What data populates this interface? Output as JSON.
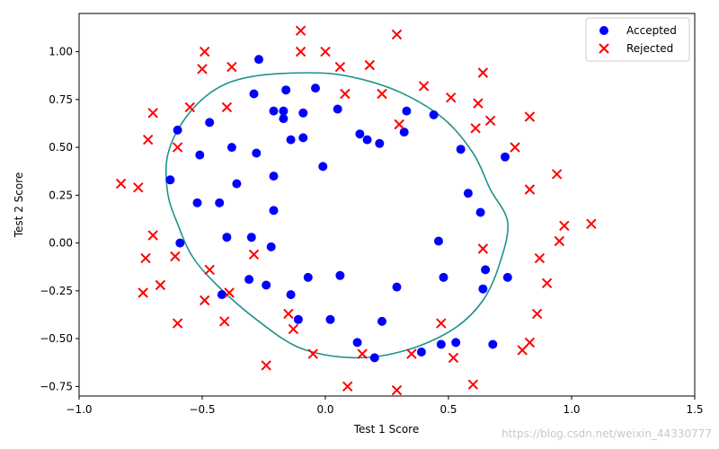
{
  "chart_data": {
    "type": "scatter",
    "xlabel": "Test 1 Score",
    "ylabel": "Test 2 Score",
    "xlim": [
      -1.0,
      1.5
    ],
    "ylim": [
      -0.8,
      1.2
    ],
    "xticks": [
      -1.0,
      -0.5,
      0.0,
      0.5,
      1.0,
      1.5
    ],
    "xtick_labels": [
      "−1.0",
      "−0.5",
      "0.0",
      "0.5",
      "1.0",
      "1.5"
    ],
    "yticks": [
      -0.75,
      -0.5,
      -0.25,
      0.0,
      0.25,
      0.5,
      0.75,
      1.0
    ],
    "ytick_labels": [
      "−0.75",
      "−0.50",
      "−0.25",
      "0.00",
      "0.25",
      "0.50",
      "0.75",
      "1.00"
    ],
    "grid": false,
    "legend_position": "top-right",
    "series": [
      {
        "name": "Accepted",
        "marker": "circle",
        "color": "#0000ff",
        "points": [
          [
            -0.27,
            0.96
          ],
          [
            -0.29,
            0.78
          ],
          [
            -0.16,
            0.8
          ],
          [
            -0.21,
            0.69
          ],
          [
            -0.17,
            0.69
          ],
          [
            -0.17,
            0.65
          ],
          [
            -0.09,
            0.68
          ],
          [
            -0.04,
            0.81
          ],
          [
            0.05,
            0.7
          ],
          [
            0.33,
            0.69
          ],
          [
            0.44,
            0.67
          ],
          [
            -0.47,
            0.63
          ],
          [
            -0.6,
            0.59
          ],
          [
            -0.14,
            0.54
          ],
          [
            -0.09,
            0.55
          ],
          [
            0.14,
            0.57
          ],
          [
            0.17,
            0.54
          ],
          [
            0.22,
            0.52
          ],
          [
            0.32,
            0.58
          ],
          [
            0.55,
            0.49
          ],
          [
            0.73,
            0.45
          ],
          [
            -0.51,
            0.46
          ],
          [
            -0.38,
            0.5
          ],
          [
            -0.28,
            0.47
          ],
          [
            -0.21,
            0.35
          ],
          [
            -0.01,
            0.4
          ],
          [
            -0.63,
            0.33
          ],
          [
            -0.36,
            0.31
          ],
          [
            -0.52,
            0.21
          ],
          [
            -0.43,
            0.21
          ],
          [
            -0.21,
            0.17
          ],
          [
            0.58,
            0.26
          ],
          [
            0.63,
            0.16
          ],
          [
            -0.59,
            0.0
          ],
          [
            -0.4,
            0.03
          ],
          [
            -0.3,
            0.03
          ],
          [
            -0.22,
            -0.02
          ],
          [
            0.46,
            0.01
          ],
          [
            -0.31,
            -0.19
          ],
          [
            -0.24,
            -0.22
          ],
          [
            -0.07,
            -0.18
          ],
          [
            0.06,
            -0.17
          ],
          [
            -0.14,
            -0.27
          ],
          [
            0.29,
            -0.23
          ],
          [
            0.48,
            -0.18
          ],
          [
            0.65,
            -0.14
          ],
          [
            0.74,
            -0.18
          ],
          [
            0.64,
            -0.24
          ],
          [
            -0.42,
            -0.27
          ],
          [
            -0.11,
            -0.4
          ],
          [
            0.02,
            -0.4
          ],
          [
            0.23,
            -0.41
          ],
          [
            0.13,
            -0.52
          ],
          [
            0.2,
            -0.6
          ],
          [
            0.39,
            -0.57
          ],
          [
            0.47,
            -0.53
          ],
          [
            0.53,
            -0.52
          ],
          [
            0.68,
            -0.53
          ]
        ]
      },
      {
        "name": "Rejected",
        "marker": "x",
        "color": "#ff0000",
        "points": [
          [
            -0.1,
            1.11
          ],
          [
            -0.49,
            1.0
          ],
          [
            -0.1,
            1.0
          ],
          [
            0.0,
            1.0
          ],
          [
            0.29,
            1.09
          ],
          [
            -0.5,
            0.91
          ],
          [
            -0.38,
            0.92
          ],
          [
            0.06,
            0.92
          ],
          [
            0.18,
            0.93
          ],
          [
            0.64,
            0.89
          ],
          [
            0.4,
            0.82
          ],
          [
            0.08,
            0.78
          ],
          [
            0.23,
            0.78
          ],
          [
            0.51,
            0.76
          ],
          [
            0.62,
            0.73
          ],
          [
            -0.55,
            0.71
          ],
          [
            -0.4,
            0.71
          ],
          [
            -0.7,
            0.68
          ],
          [
            0.67,
            0.64
          ],
          [
            0.83,
            0.66
          ],
          [
            0.3,
            0.62
          ],
          [
            0.61,
            0.6
          ],
          [
            -0.72,
            0.54
          ],
          [
            -0.6,
            0.5
          ],
          [
            0.77,
            0.5
          ],
          [
            0.94,
            0.36
          ],
          [
            -0.83,
            0.31
          ],
          [
            -0.76,
            0.29
          ],
          [
            0.83,
            0.28
          ],
          [
            -0.7,
            0.04
          ],
          [
            0.97,
            0.09
          ],
          [
            1.08,
            0.1
          ],
          [
            0.95,
            0.01
          ],
          [
            0.64,
            -0.03
          ],
          [
            -0.61,
            -0.07
          ],
          [
            -0.29,
            -0.06
          ],
          [
            -0.73,
            -0.08
          ],
          [
            0.87,
            -0.08
          ],
          [
            -0.47,
            -0.14
          ],
          [
            -0.67,
            -0.22
          ],
          [
            0.9,
            -0.21
          ],
          [
            -0.74,
            -0.26
          ],
          [
            -0.39,
            -0.26
          ],
          [
            -0.49,
            -0.3
          ],
          [
            -0.6,
            -0.42
          ],
          [
            -0.41,
            -0.41
          ],
          [
            -0.15,
            -0.37
          ],
          [
            -0.13,
            -0.45
          ],
          [
            0.47,
            -0.42
          ],
          [
            0.86,
            -0.37
          ],
          [
            0.83,
            -0.52
          ],
          [
            0.8,
            -0.56
          ],
          [
            -0.05,
            -0.58
          ],
          [
            0.15,
            -0.58
          ],
          [
            0.35,
            -0.58
          ],
          [
            0.52,
            -0.6
          ],
          [
            -0.24,
            -0.64
          ],
          [
            0.09,
            -0.75
          ],
          [
            0.29,
            -0.77
          ],
          [
            0.6,
            -0.74
          ]
        ]
      }
    ],
    "decision_boundary": {
      "type": "closed-curve",
      "color": "#20938a",
      "points": [
        [
          -0.07,
          0.89
        ],
        [
          0.1,
          0.87
        ],
        [
          0.3,
          0.79
        ],
        [
          0.48,
          0.65
        ],
        [
          0.6,
          0.47
        ],
        [
          0.67,
          0.28
        ],
        [
          0.74,
          0.11
        ],
        [
          0.71,
          -0.1
        ],
        [
          0.64,
          -0.3
        ],
        [
          0.52,
          -0.45
        ],
        [
          0.33,
          -0.56
        ],
        [
          0.12,
          -0.6
        ],
        [
          -0.1,
          -0.55
        ],
        [
          -0.28,
          -0.4
        ],
        [
          -0.44,
          -0.22
        ],
        [
          -0.54,
          -0.07
        ],
        [
          -0.6,
          0.1
        ],
        [
          -0.64,
          0.26
        ],
        [
          -0.64,
          0.46
        ],
        [
          -0.57,
          0.65
        ],
        [
          -0.45,
          0.8
        ],
        [
          -0.3,
          0.87
        ]
      ]
    }
  },
  "watermark": "https://blog.csdn.net/weixin_44330777"
}
